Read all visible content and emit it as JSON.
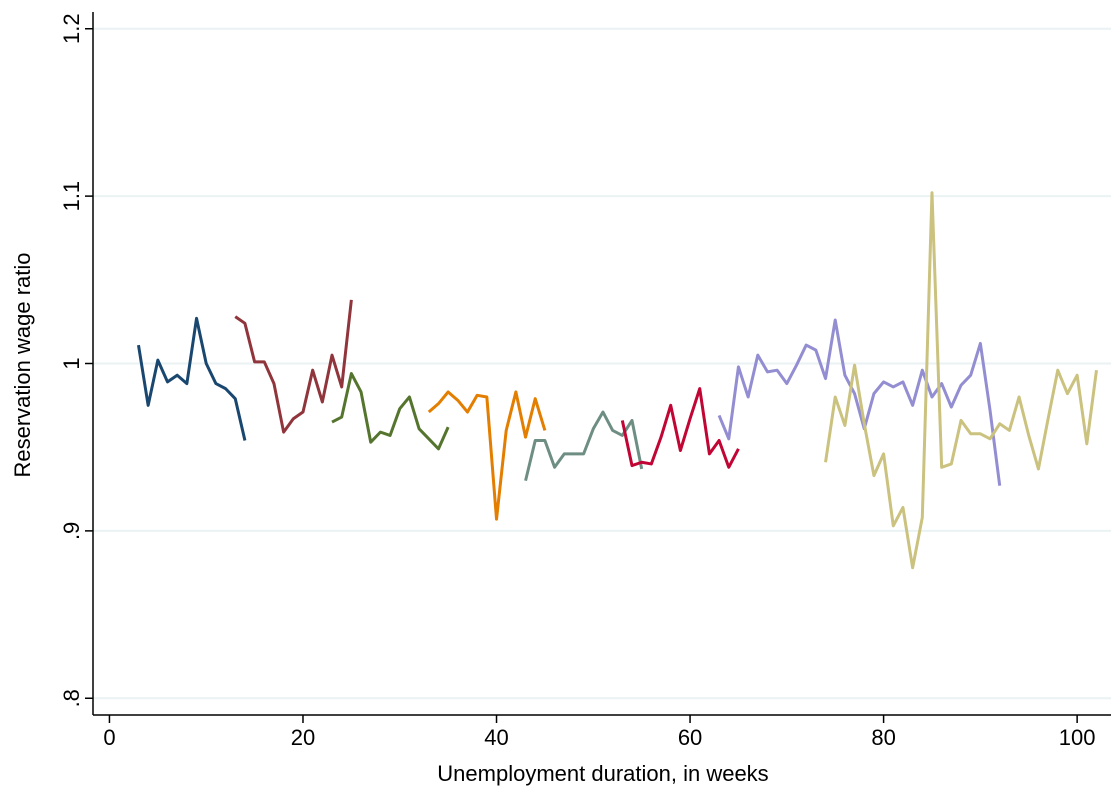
{
  "chart_data": {
    "type": "line",
    "xlabel": "Unemployment duration, in weeks",
    "ylabel": "Reservation wage ratio",
    "xlim": [
      -1.7,
      103.5
    ],
    "ylim": [
      0.79,
      1.21
    ],
    "xticks": [
      0,
      20,
      40,
      60,
      80,
      100
    ],
    "yticks": [
      {
        "value": 0.8,
        "label": ".8"
      },
      {
        "value": 0.9,
        "label": ".9"
      },
      1,
      1.1,
      1.2
    ],
    "grid": true,
    "series": [
      {
        "color": "#1a476f",
        "x": [
          3,
          4,
          5,
          6,
          7,
          8,
          9,
          10,
          11,
          12,
          13,
          14
        ],
        "values": [
          1.011,
          0.975,
          1.002,
          0.989,
          0.993,
          0.988,
          1.027,
          1.0,
          0.988,
          0.985,
          0.979,
          0.954
        ]
      },
      {
        "color": "#90353b",
        "x": [
          13,
          14,
          15,
          16,
          17,
          18,
          19,
          20,
          21,
          22,
          23,
          24,
          25
        ],
        "values": [
          1.028,
          1.024,
          1.001,
          1.001,
          0.988,
          0.959,
          0.967,
          0.971,
          0.996,
          0.977,
          1.005,
          0.986,
          1.038
        ]
      },
      {
        "color": "#55752f",
        "x": [
          23,
          24,
          25,
          26,
          27,
          28,
          29,
          30,
          31,
          32,
          33,
          34,
          35
        ],
        "values": [
          0.965,
          0.968,
          0.994,
          0.983,
          0.953,
          0.959,
          0.957,
          0.973,
          0.98,
          0.961,
          0.955,
          0.949,
          0.962
        ]
      },
      {
        "color": "#e37e00",
        "x": [
          33,
          34,
          35,
          36,
          37,
          38,
          39,
          40,
          41,
          42,
          43,
          44,
          45
        ],
        "values": [
          0.971,
          0.976,
          0.983,
          0.978,
          0.971,
          0.981,
          0.98,
          0.907,
          0.96,
          0.983,
          0.956,
          0.979,
          0.96
        ]
      },
      {
        "color": "#6e8e84",
        "x": [
          43,
          44,
          45,
          46,
          47,
          48,
          49,
          50,
          51,
          52,
          53,
          54,
          55
        ],
        "values": [
          0.93,
          0.954,
          0.954,
          0.938,
          0.946,
          0.946,
          0.946,
          0.961,
          0.971,
          0.96,
          0.957,
          0.966,
          0.937
        ]
      },
      {
        "color": "#c10534",
        "x": [
          53,
          54,
          55,
          56,
          57,
          58,
          59,
          60,
          61,
          62,
          63,
          64,
          65
        ],
        "values": [
          0.966,
          0.939,
          0.941,
          0.94,
          0.956,
          0.975,
          0.948,
          0.967,
          0.985,
          0.946,
          0.954,
          0.938,
          0.949
        ]
      },
      {
        "color": "#938dd2",
        "x": [
          63,
          64,
          65,
          66,
          67,
          68,
          69,
          70,
          71,
          72,
          73,
          74,
          75,
          76,
          77,
          78,
          79,
          80,
          81,
          82,
          83,
          84,
          85,
          86,
          87,
          88,
          89,
          90,
          91,
          92
        ],
        "values": [
          0.969,
          0.955,
          0.998,
          0.98,
          1.005,
          0.995,
          0.996,
          0.988,
          0.999,
          1.011,
          1.008,
          0.991,
          1.026,
          0.993,
          0.982,
          0.961,
          0.982,
          0.989,
          0.986,
          0.989,
          0.975,
          0.996,
          0.98,
          0.988,
          0.974,
          0.987,
          0.993,
          1.012,
          0.972,
          0.927
        ]
      },
      {
        "color": "#cac27e",
        "x": [
          74,
          75,
          76,
          77,
          78,
          79,
          80,
          81,
          82,
          83,
          84,
          85,
          86,
          87,
          88,
          89,
          90,
          91,
          92,
          93,
          94,
          95,
          96,
          97,
          98,
          99,
          100,
          101,
          102
        ],
        "values": [
          0.941,
          0.98,
          0.963,
          0.999,
          0.964,
          0.933,
          0.946,
          0.903,
          0.914,
          0.878,
          0.908,
          1.102,
          0.938,
          0.94,
          0.966,
          0.958,
          0.958,
          0.955,
          0.964,
          0.96,
          0.98,
          0.957,
          0.937,
          0.967,
          0.996,
          0.982,
          0.993,
          0.952,
          0.996
        ]
      }
    ]
  }
}
